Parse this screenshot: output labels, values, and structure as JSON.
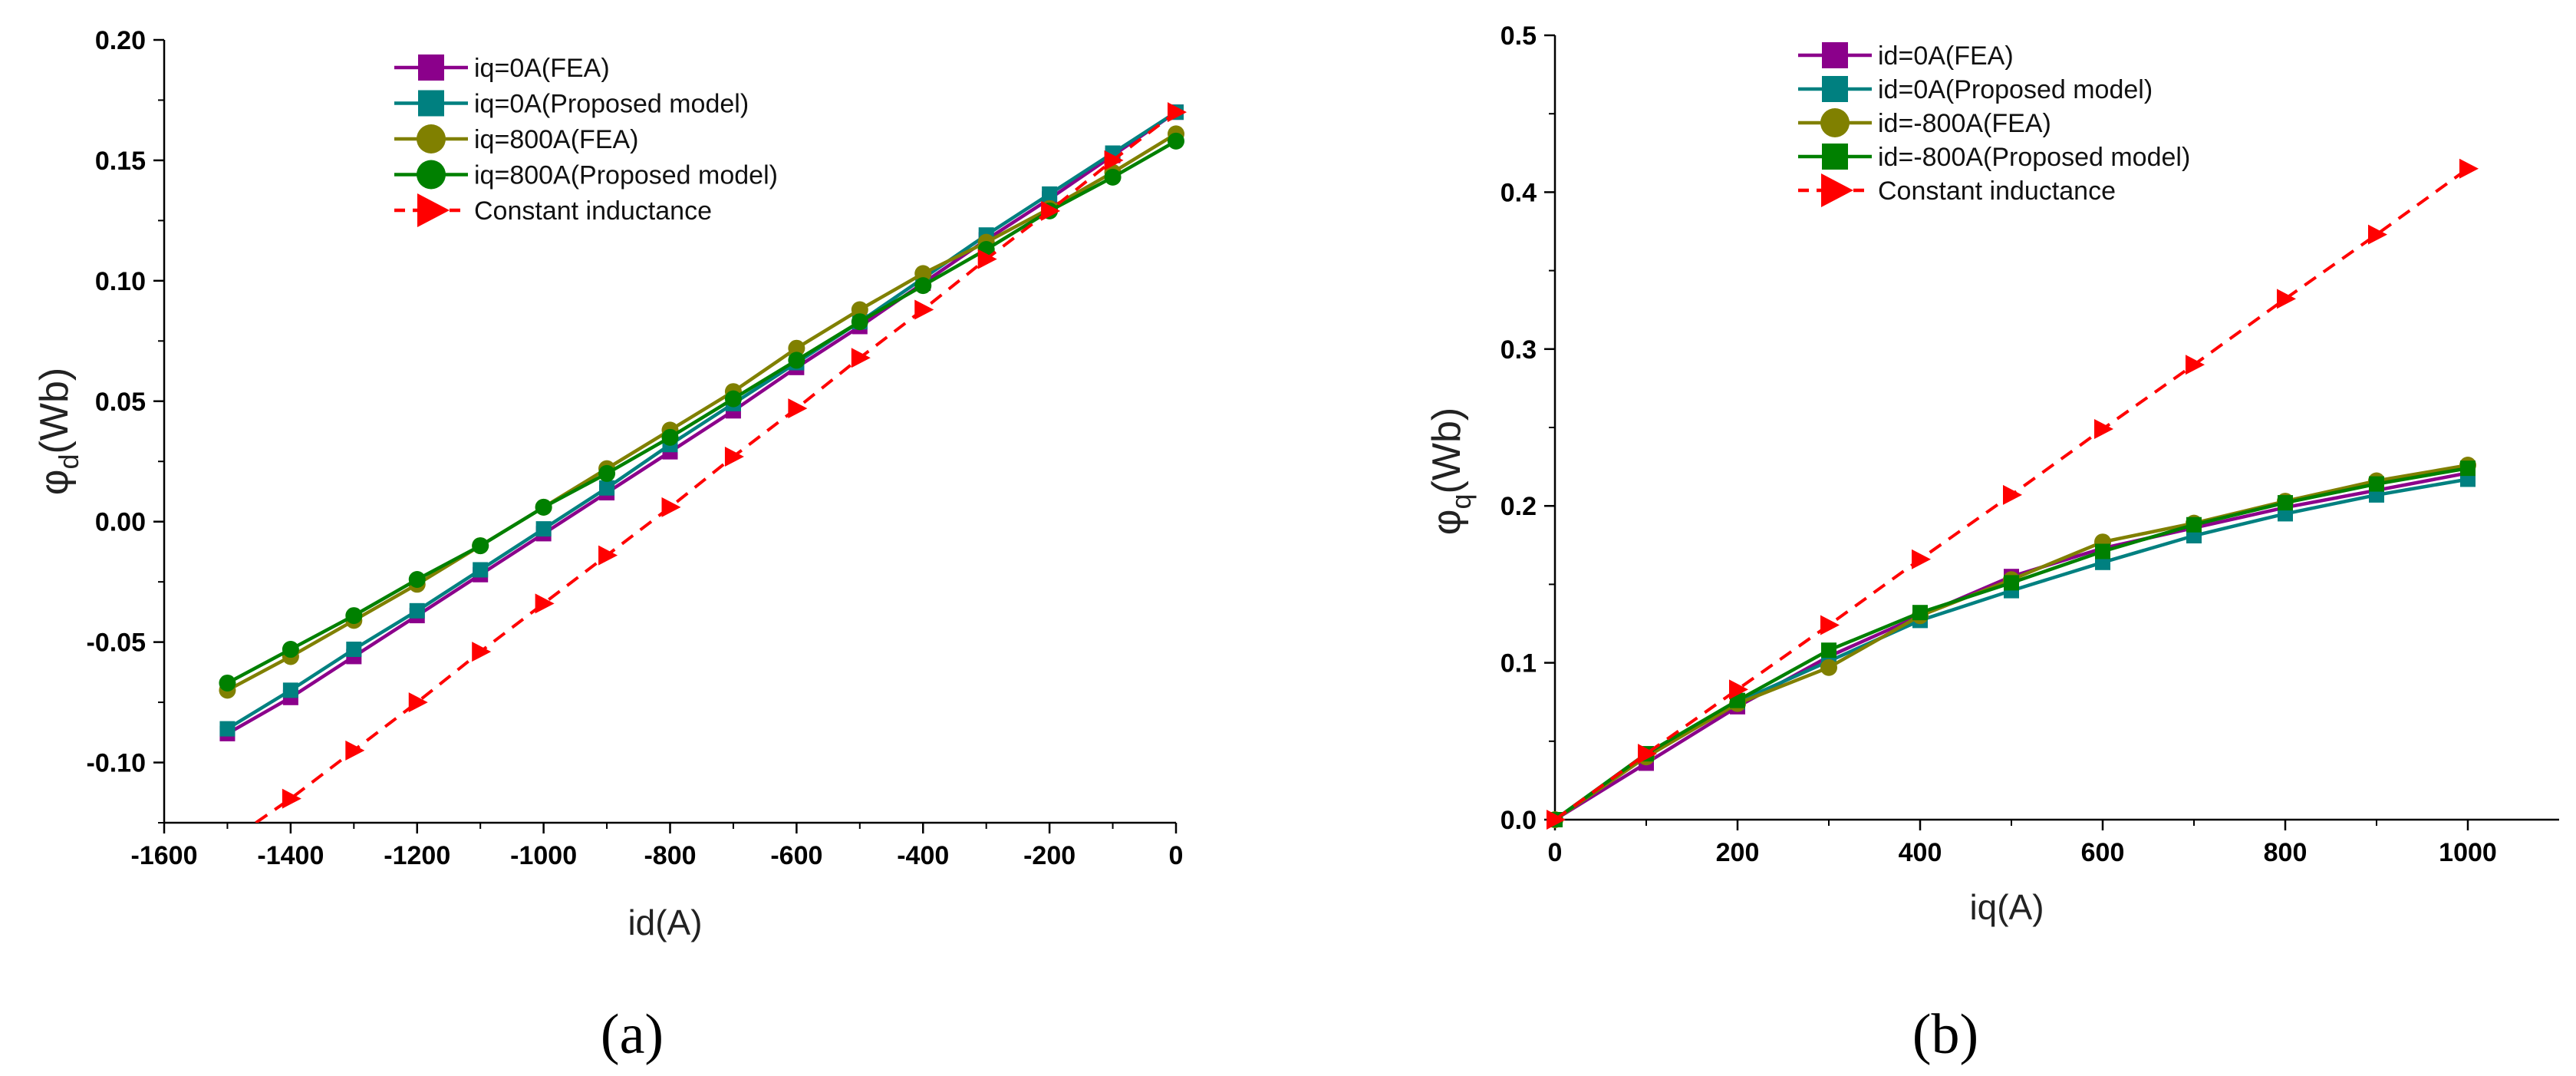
{
  "chart_data": [
    {
      "type": "line",
      "panel_label": "(a)",
      "xlabel": "id(A)",
      "ylabel_main": "φ",
      "ylabel_sub": "d",
      "ylabel_unit": "(Wb)",
      "xlim": [
        -1600,
        0
      ],
      "ylim": [
        -0.125,
        0.2
      ],
      "xticks": [
        -1600,
        -1400,
        -1200,
        -1000,
        -800,
        -600,
        -400,
        -200,
        0
      ],
      "yticks": [
        -0.1,
        -0.05,
        0.0,
        0.05,
        0.1,
        0.15,
        0.2
      ],
      "xtick_labels": [
        "-1600",
        "-1400",
        "-1200",
        "-1000",
        "-800",
        "-600",
        "-400",
        "-200",
        "0"
      ],
      "ytick_labels": [
        "-0.10",
        "-0.05",
        "0.00",
        "0.05",
        "0.10",
        "0.15",
        "0.20"
      ],
      "legend_position": "top-center",
      "series": [
        {
          "name": "iq=0A(FEA)",
          "color": "#8B008B",
          "marker": "square",
          "dashed": false,
          "x": [
            -1500,
            -1400,
            -1300,
            -1200,
            -1100,
            -1000,
            -900,
            -800,
            -700,
            -600,
            -500,
            -400,
            -300,
            -200,
            -100,
            0
          ],
          "y": [
            -0.088,
            -0.073,
            -0.056,
            -0.039,
            -0.022,
            -0.005,
            0.012,
            0.029,
            0.046,
            0.064,
            0.081,
            0.099,
            0.117,
            0.134,
            0.152,
            0.17
          ]
        },
        {
          "name": "iq=0A(Proposed model)",
          "color": "#008080",
          "marker": "square",
          "dashed": false,
          "x": [
            -1500,
            -1400,
            -1300,
            -1200,
            -1100,
            -1000,
            -900,
            -800,
            -700,
            -600,
            -500,
            -400,
            -300,
            -200,
            -100,
            0
          ],
          "y": [
            -0.086,
            -0.07,
            -0.053,
            -0.037,
            -0.02,
            -0.003,
            0.014,
            0.032,
            0.049,
            0.066,
            0.083,
            0.101,
            0.119,
            0.136,
            0.153,
            0.17
          ]
        },
        {
          "name": "iq=800A(FEA)",
          "color": "#808000",
          "marker": "circle",
          "dashed": false,
          "x": [
            -1500,
            -1400,
            -1300,
            -1200,
            -1100,
            -1000,
            -900,
            -800,
            -700,
            -600,
            -500,
            -400,
            -300,
            -200,
            -100,
            0
          ],
          "y": [
            -0.07,
            -0.056,
            -0.041,
            -0.026,
            -0.01,
            0.006,
            0.022,
            0.038,
            0.054,
            0.072,
            0.088,
            0.103,
            0.116,
            0.13,
            0.145,
            0.161
          ]
        },
        {
          "name": "iq=800A(Proposed model)",
          "color": "#008000",
          "marker": "circle",
          "dashed": false,
          "x": [
            -1500,
            -1400,
            -1300,
            -1200,
            -1100,
            -1000,
            -900,
            -800,
            -700,
            -600,
            -500,
            -400,
            -300,
            -200,
            -100,
            0
          ],
          "y": [
            -0.067,
            -0.053,
            -0.039,
            -0.024,
            -0.01,
            0.006,
            0.02,
            0.035,
            0.051,
            0.067,
            0.083,
            0.098,
            0.113,
            0.129,
            0.143,
            0.158
          ]
        },
        {
          "name": "Constant inductance",
          "color": "#FF0000",
          "marker": "triangle-right",
          "dashed": true,
          "x": [
            -1455,
            -1400,
            -1300,
            -1200,
            -1100,
            -1000,
            -900,
            -800,
            -700,
            -600,
            -500,
            -400,
            -300,
            -200,
            -100,
            0
          ],
          "y": [
            -0.125,
            -0.115,
            -0.095,
            -0.075,
            -0.054,
            -0.034,
            -0.014,
            0.006,
            0.027,
            0.047,
            0.068,
            0.088,
            0.109,
            0.129,
            0.15,
            0.17
          ],
          "marker_from_index": 1
        }
      ]
    },
    {
      "type": "line",
      "panel_label": "(b)",
      "xlabel": "iq(A)",
      "ylabel_main": "φ",
      "ylabel_sub": "q",
      "ylabel_unit": "(Wb)",
      "xlim": [
        0,
        1100
      ],
      "ylim": [
        0,
        0.5
      ],
      "xticks": [
        0,
        200,
        400,
        600,
        800,
        1000
      ],
      "yticks": [
        0.0,
        0.1,
        0.2,
        0.3,
        0.4,
        0.5
      ],
      "xtick_labels": [
        "0",
        "200",
        "400",
        "600",
        "800",
        "1000"
      ],
      "ytick_labels": [
        "0.0",
        "0.1",
        "0.2",
        "0.3",
        "0.4",
        "0.5"
      ],
      "legend_position": "top-left",
      "series": [
        {
          "name": "id=0A(FEA)",
          "color": "#8B008B",
          "marker": "square",
          "dashed": false,
          "x": [
            0,
            100,
            200,
            300,
            400,
            500,
            600,
            700,
            800,
            900,
            1000
          ],
          "y": [
            0.0,
            0.036,
            0.072,
            0.104,
            0.13,
            0.155,
            0.173,
            0.186,
            0.199,
            0.21,
            0.221
          ]
        },
        {
          "name": "id=0A(Proposed model)",
          "color": "#008080",
          "marker": "square",
          "dashed": false,
          "x": [
            0,
            100,
            200,
            300,
            400,
            500,
            600,
            700,
            800,
            900,
            1000
          ],
          "y": [
            0.0,
            0.042,
            0.075,
            0.101,
            0.127,
            0.146,
            0.164,
            0.181,
            0.195,
            0.207,
            0.217
          ]
        },
        {
          "name": "id=-800A(FEA)",
          "color": "#808000",
          "marker": "circle",
          "dashed": false,
          "x": [
            0,
            100,
            200,
            300,
            400,
            500,
            600,
            700,
            800,
            900,
            1000
          ],
          "y": [
            0.0,
            0.04,
            0.074,
            0.097,
            0.13,
            0.153,
            0.177,
            0.189,
            0.203,
            0.216,
            0.226
          ]
        },
        {
          "name": "id=-800A(Proposed model)",
          "color": "#008000",
          "marker": "square",
          "dashed": false,
          "x": [
            0,
            100,
            200,
            300,
            400,
            500,
            600,
            700,
            800,
            900,
            1000
          ],
          "y": [
            0.0,
            0.042,
            0.076,
            0.108,
            0.132,
            0.151,
            0.171,
            0.188,
            0.202,
            0.214,
            0.224
          ]
        },
        {
          "name": "Constant inductance",
          "color": "#FF0000",
          "marker": "triangle-right",
          "dashed": true,
          "x": [
            0,
            100,
            200,
            300,
            400,
            500,
            600,
            700,
            800,
            900,
            1000
          ],
          "y": [
            0.0,
            0.042,
            0.083,
            0.124,
            0.166,
            0.207,
            0.249,
            0.29,
            0.332,
            0.373,
            0.415
          ],
          "marker_from_index": 0
        }
      ]
    }
  ]
}
